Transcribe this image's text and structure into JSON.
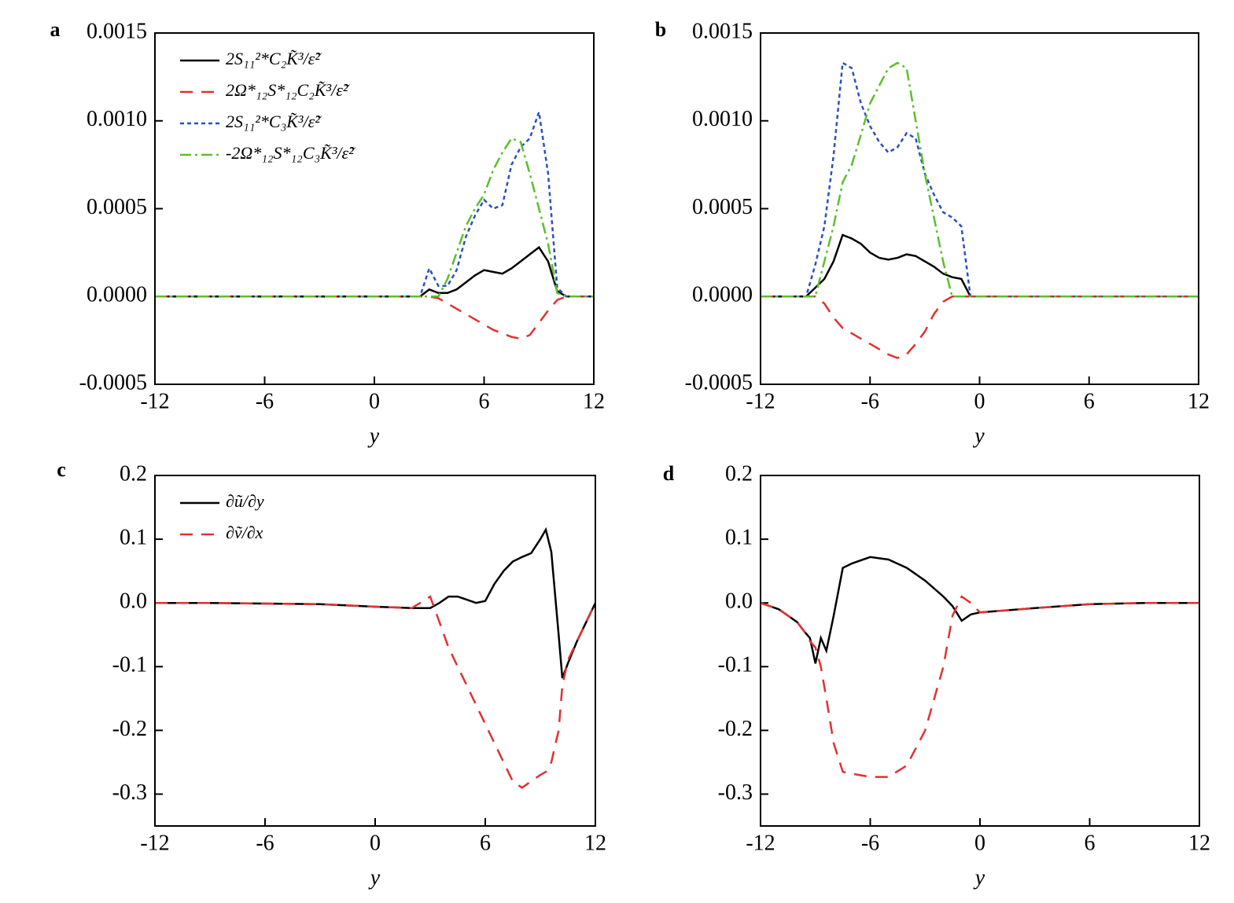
{
  "chart_data": [
    {
      "type": "line",
      "panel_label": "a",
      "xlabel": "y",
      "legend": "upper left",
      "x": [
        -12,
        -9,
        -6,
        -3,
        0,
        2,
        2.5,
        3,
        3.5,
        4,
        4.5,
        5,
        5.5,
        6,
        6.5,
        7,
        7.5,
        8,
        8.5,
        9,
        9.5,
        10,
        10.5,
        11,
        12
      ],
      "xlim": [
        -12,
        12
      ],
      "xticks": [
        -12,
        -6,
        0,
        6,
        12
      ],
      "ylim": [
        -0.0005,
        0.0015
      ],
      "yticks": [
        -0.0005,
        {
          "value": 0,
          "label": "0.0000"
        },
        0.0005,
        {
          "value": 0.001,
          "label": "0.0010"
        },
        0.0015
      ],
      "series": [
        {
          "name": "2S₁₁²*C₂K̃³/ε̃²",
          "color": "#000000",
          "style": "solid",
          "values": [
            0,
            0,
            0,
            0,
            0,
            0,
            0,
            4e-05,
            2e-05,
            2e-05,
            4e-05,
            8e-05,
            0.00012,
            0.00015,
            0.00014,
            0.00013,
            0.00016,
            0.0002,
            0.00024,
            0.00028,
            0.0002,
            3e-05,
            0,
            0,
            0
          ]
        },
        {
          "name": "2Ω*₁₂S*₁₂C₂K̃³/ε̃²",
          "color": "#e03131",
          "style": "dashed",
          "values": [
            0,
            0,
            0,
            0,
            0,
            0,
            0,
            0,
            -1e-05,
            -4e-05,
            -7e-05,
            -0.0001,
            -0.00013,
            -0.00016,
            -0.00019,
            -0.00021,
            -0.00023,
            -0.00024,
            -0.00022,
            -0.00015,
            -8e-05,
            -2e-05,
            0,
            0,
            0
          ]
        },
        {
          "name": "2S₁₁²*C₃K̃³/ε̃²",
          "color": "#2a4fc0",
          "style": "dotted",
          "values": [
            0,
            0,
            0,
            0,
            0,
            0,
            0,
            0.00016,
            6e-05,
            6e-05,
            0.00015,
            0.00034,
            0.00046,
            0.00055,
            0.0005,
            0.00052,
            0.00075,
            0.00085,
            0.0009,
            0.00105,
            0.0007,
            5e-05,
            0,
            0,
            0
          ]
        },
        {
          "name": "-2Ω*₁₂S*₁₂C₃K̃³/ε̃²",
          "color": "#5bbf2a",
          "style": "dashdot",
          "values": [
            0,
            0,
            0,
            0,
            0,
            0,
            0,
            0,
            0,
            0.0001,
            0.00025,
            0.0004,
            0.0005,
            0.00058,
            0.00072,
            0.00082,
            0.0009,
            0.00088,
            0.0007,
            0.0005,
            0.0003,
            2e-05,
            0,
            0,
            0
          ]
        }
      ]
    },
    {
      "type": "line",
      "panel_label": "b",
      "xlabel": "y",
      "x": [
        -12,
        -10,
        -9.5,
        -9,
        -8.5,
        -8,
        -7.5,
        -7,
        -6.5,
        -6,
        -5.5,
        -5,
        -4.5,
        -4,
        -3.5,
        -3,
        -2.5,
        -2,
        -1.5,
        -1,
        -0.5,
        0,
        3,
        6,
        9,
        12
      ],
      "xlim": [
        -12,
        12
      ],
      "xticks": [
        -12,
        -6,
        0,
        6,
        12
      ],
      "ylim": [
        -0.0005,
        0.0015
      ],
      "yticks": [
        -0.0005,
        {
          "value": 0,
          "label": "0.0000"
        },
        0.0005,
        {
          "value": 0.001,
          "label": "0.0010"
        },
        0.0015
      ],
      "series": [
        {
          "color": "#000000",
          "style": "solid",
          "values": [
            0,
            0,
            0,
            5e-05,
            0.0001,
            0.0002,
            0.00035,
            0.00033,
            0.0003,
            0.00025,
            0.00022,
            0.00021,
            0.00022,
            0.00024,
            0.00023,
            0.0002,
            0.00017,
            0.00013,
            0.00011,
            0.0001,
            0,
            0,
            0,
            0,
            0,
            0
          ]
        },
        {
          "color": "#e03131",
          "style": "dashed",
          "values": [
            0,
            0,
            0,
            0,
            -4e-05,
            -0.00012,
            -0.00018,
            -0.00021,
            -0.00024,
            -0.00027,
            -0.0003,
            -0.00033,
            -0.00035,
            -0.00033,
            -0.00027,
            -0.0002,
            -0.0001,
            -3e-05,
            0,
            0,
            0,
            0,
            0,
            0,
            0,
            0
          ]
        },
        {
          "color": "#2a4fc0",
          "style": "dotted",
          "values": [
            0,
            0,
            0,
            0.00018,
            0.0004,
            0.0008,
            0.00133,
            0.0013,
            0.0011,
            0.00097,
            0.00088,
            0.00082,
            0.00085,
            0.00093,
            0.0009,
            0.0007,
            0.00058,
            0.00048,
            0.00045,
            0.0004,
            0,
            0,
            0,
            0,
            0,
            0
          ]
        },
        {
          "color": "#5bbf2a",
          "style": "dashdot",
          "values": [
            0,
            0,
            0,
            0,
            0.0002,
            0.0004,
            0.00065,
            0.00075,
            0.00092,
            0.0011,
            0.0012,
            0.0013,
            0.00133,
            0.0013,
            0.001,
            0.0007,
            0.00045,
            0.0002,
            0,
            0,
            0,
            0,
            0,
            0,
            0,
            0
          ]
        }
      ]
    },
    {
      "type": "line",
      "panel_label": "c",
      "xlabel": "y",
      "legend": "upper left",
      "x": [
        -12,
        -9,
        -6,
        -3,
        0,
        2,
        3,
        3.5,
        4,
        4.5,
        5,
        5.5,
        6,
        6.5,
        7,
        7.5,
        8,
        8.5,
        9,
        9.3,
        9.6,
        10,
        10.2,
        10.5,
        11,
        12
      ],
      "xlim": [
        -12,
        12
      ],
      "xticks": [
        -12,
        -6,
        0,
        6,
        12
      ],
      "ylim": [
        -0.35,
        0.2
      ],
      "yticks": [
        -0.3,
        -0.2,
        -0.1,
        {
          "value": 0,
          "label": "0.0"
        },
        0.1,
        0.2
      ],
      "series": [
        {
          "name": "∂ũ/∂y",
          "color": "#000000",
          "style": "solid",
          "values": [
            0,
            0,
            -0.001,
            -0.002,
            -0.006,
            -0.008,
            -0.008,
            0,
            0.01,
            0.01,
            0.005,
            0,
            0.003,
            0.03,
            0.05,
            0.065,
            0.072,
            0.078,
            0.1,
            0.115,
            0.08,
            -0.05,
            -0.118,
            -0.095,
            -0.06,
            0
          ]
        },
        {
          "name": "∂ṽ/∂x",
          "color": "#e03131",
          "style": "dashed",
          "values": [
            0,
            0,
            -0.001,
            -0.002,
            -0.006,
            -0.008,
            0.01,
            -0.03,
            -0.07,
            -0.1,
            -0.13,
            -0.16,
            -0.19,
            -0.22,
            -0.25,
            -0.28,
            -0.29,
            -0.28,
            -0.27,
            -0.265,
            -0.25,
            -0.2,
            -0.13,
            -0.09,
            -0.06,
            0
          ]
        }
      ]
    },
    {
      "type": "line",
      "panel_label": "d",
      "xlabel": "y",
      "x": [
        -12,
        -11,
        -10,
        -9.6,
        -9.3,
        -9,
        -8.7,
        -8.4,
        -8,
        -7.5,
        -7,
        -6,
        -5,
        -4,
        -3,
        -2,
        -1.5,
        -1,
        -0.5,
        0,
        3,
        6,
        9,
        12
      ],
      "xlim": [
        -12,
        12
      ],
      "xticks": [
        -12,
        -6,
        0,
        6,
        12
      ],
      "ylim": [
        -0.35,
        0.2
      ],
      "yticks": [
        -0.3,
        -0.2,
        -0.1,
        {
          "value": 0,
          "label": "0.0"
        },
        0.1,
        0.2
      ],
      "series": [
        {
          "color": "#000000",
          "style": "solid",
          "values": [
            0,
            -0.01,
            -0.03,
            -0.045,
            -0.055,
            -0.095,
            -0.055,
            -0.075,
            -0.02,
            0.055,
            0.062,
            0.072,
            0.068,
            0.055,
            0.035,
            0.01,
            -0.005,
            -0.028,
            -0.018,
            -0.015,
            -0.008,
            -0.002,
            0,
            0
          ]
        },
        {
          "color": "#e03131",
          "style": "dashed",
          "values": [
            0,
            -0.01,
            -0.03,
            -0.045,
            -0.06,
            -0.07,
            -0.1,
            -0.15,
            -0.22,
            -0.265,
            -0.268,
            -0.273,
            -0.273,
            -0.255,
            -0.2,
            -0.1,
            -0.02,
            0.01,
            0,
            -0.015,
            -0.008,
            -0.002,
            0,
            0
          ]
        }
      ]
    }
  ]
}
